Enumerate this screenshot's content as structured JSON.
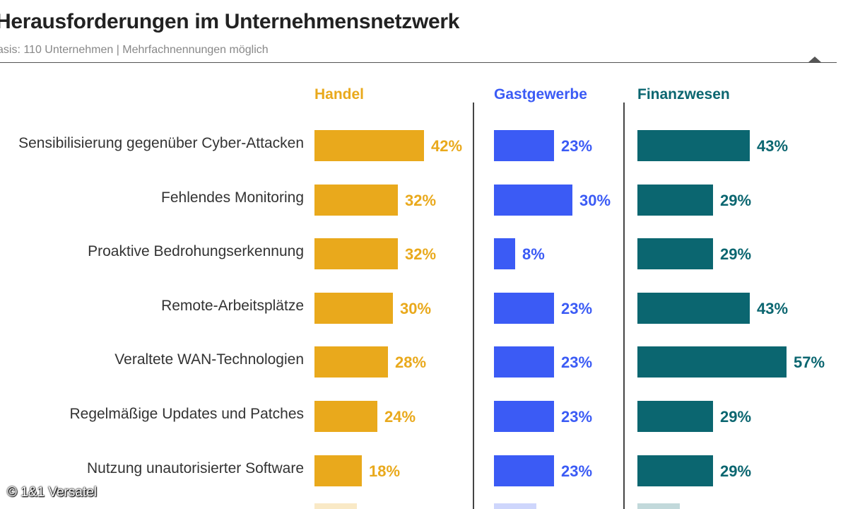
{
  "title": "Herausforderungen im Unternehmensnetzwerk",
  "subtitle": "asis: 110 Unternehmen | Mehrfachnennungen möglich",
  "copyright": "© 1&1 Versatel",
  "colors": {
    "handel": "#E9A91C",
    "gastgewerbe": "#3B5BF5",
    "finanzwesen": "#0B6670"
  },
  "chart_data": {
    "type": "bar",
    "title": "Herausforderungen im Unternehmensnetzwerk",
    "categories": [
      "Sensibilisierung gegenüber Cyber-Attacken",
      "Fehlendes Monitoring",
      "Proaktive Bedrohungserkennung",
      "Remote-Arbeitsplätze",
      "Veraltete WAN-Technologien",
      "Regelmäßige Updates und Patches",
      "Nutzung unautorisierter Software"
    ],
    "series": [
      {
        "name": "Handel",
        "color": "#E9A91C",
        "values": [
          42,
          32,
          32,
          30,
          28,
          24,
          18
        ]
      },
      {
        "name": "Gastgewerbe",
        "color": "#3B5BF5",
        "values": [
          23,
          30,
          8,
          23,
          23,
          23,
          23
        ]
      },
      {
        "name": "Finanzwesen",
        "color": "#0B6670",
        "values": [
          43,
          29,
          29,
          43,
          57,
          29,
          29
        ]
      }
    ],
    "unit": "%"
  }
}
